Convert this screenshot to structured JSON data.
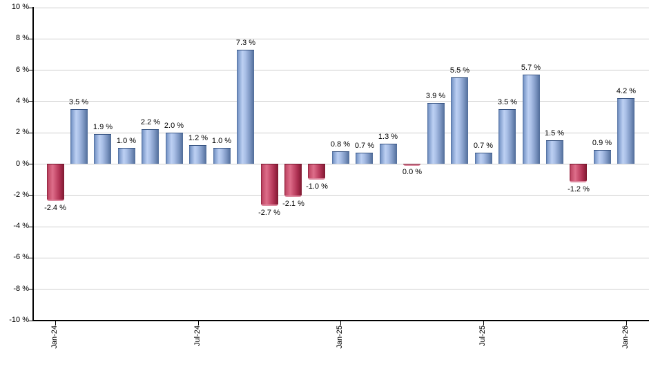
{
  "page": {
    "background": "#ffffff"
  },
  "chart_data": {
    "type": "bar",
    "title": "",
    "xlabel": "",
    "ylabel": "",
    "ylim": [
      -10,
      10
    ],
    "ytick_step": 2,
    "grid": true,
    "legend": false,
    "value_suffix": " %",
    "y_axis_ticks": [
      {
        "value": 10,
        "label": "10 %"
      },
      {
        "value": 8,
        "label": "8 %"
      },
      {
        "value": 6,
        "label": "6 %"
      },
      {
        "value": 4,
        "label": "4 %"
      },
      {
        "value": 2,
        "label": "2 %"
      },
      {
        "value": 0,
        "label": "0 %"
      },
      {
        "value": -2,
        "label": "-2 %"
      },
      {
        "value": -4,
        "label": "-4 %"
      },
      {
        "value": -6,
        "label": "-6 %"
      },
      {
        "value": -8,
        "label": "-8 %"
      },
      {
        "value": -10,
        "label": "-10 %"
      }
    ],
    "x_axis_ticks": [
      {
        "month_index": 0,
        "label": "Jan-24"
      },
      {
        "month_index": 6,
        "label": "Jul-24"
      },
      {
        "month_index": 12,
        "label": "Jan-25"
      },
      {
        "month_index": 18,
        "label": "Jul-25"
      },
      {
        "month_index": 24,
        "label": "Jan-26"
      }
    ],
    "bars": [
      {
        "value": -2.4,
        "label": "-2.4 %",
        "color": "red"
      },
      {
        "value": 3.5,
        "label": "3.5 %",
        "color": "blue"
      },
      {
        "value": 1.9,
        "label": "1.9 %",
        "color": "blue"
      },
      {
        "value": 1.0,
        "label": "1.0 %",
        "color": "blue"
      },
      {
        "value": 2.2,
        "label": "2.2 %",
        "color": "blue"
      },
      {
        "value": 2.0,
        "label": "2.0 %",
        "color": "blue"
      },
      {
        "value": 1.2,
        "label": "1.2 %",
        "color": "blue"
      },
      {
        "value": 1.0,
        "label": "1.0 %",
        "color": "blue"
      },
      {
        "value": 7.3,
        "label": "7.3 %",
        "color": "blue"
      },
      {
        "value": -2.7,
        "label": "-2.7 %",
        "color": "red"
      },
      {
        "value": -2.1,
        "label": "-2.1 %",
        "color": "red"
      },
      {
        "value": -1.0,
        "label": "-1.0 %",
        "color": "red"
      },
      {
        "value": 0.8,
        "label": "0.8 %",
        "color": "blue"
      },
      {
        "value": 0.7,
        "label": "0.7 %",
        "color": "blue"
      },
      {
        "value": 1.3,
        "label": "1.3 %",
        "color": "blue"
      },
      {
        "value": 0.0,
        "label": "0.0 %",
        "color": "red"
      },
      {
        "value": 3.9,
        "label": "3.9 %",
        "color": "blue"
      },
      {
        "value": 5.5,
        "label": "5.5 %",
        "color": "blue"
      },
      {
        "value": 0.7,
        "label": "0.7 %",
        "color": "blue"
      },
      {
        "value": 3.5,
        "label": "3.5 %",
        "color": "blue"
      },
      {
        "value": 5.7,
        "label": "5.7 %",
        "color": "blue"
      },
      {
        "value": 1.5,
        "label": "1.5 %",
        "color": "blue"
      },
      {
        "value": -1.2,
        "label": "-1.2 %",
        "color": "red"
      },
      {
        "value": 0.9,
        "label": "0.9 %",
        "color": "blue"
      },
      {
        "value": 4.2,
        "label": "4.2 %",
        "color": "blue"
      }
    ]
  },
  "style": {
    "grid_color": "#cdcdcd",
    "axis_color": "#000000",
    "label_color": "#000000",
    "positive_bar_edge": "#4d6b9b",
    "positive_bar_mid": "#bdd0f3",
    "negative_bar_edge": "#8c1d38",
    "negative_bar_mid": "#de6e8a"
  }
}
